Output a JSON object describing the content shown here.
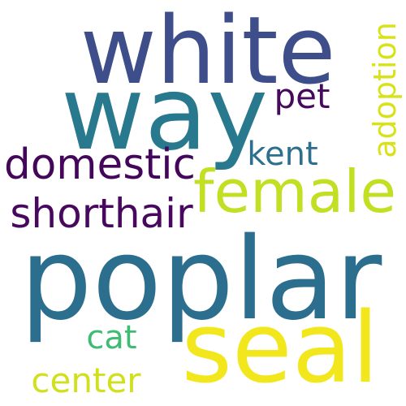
{
  "words": [
    {
      "id": "white",
      "text": "white",
      "color": "#3e4e8a",
      "vertical": false
    },
    {
      "id": "way",
      "text": "way",
      "color": "#28788e",
      "vertical": false
    },
    {
      "id": "poplar",
      "text": "poplar",
      "color": "#2c6e8e",
      "vertical": false
    },
    {
      "id": "seal",
      "text": "seal",
      "color": "#f2e71d",
      "vertical": false
    },
    {
      "id": "female",
      "text": "female",
      "color": "#c2df23",
      "vertical": false
    },
    {
      "id": "domestic",
      "text": "domestic",
      "color": "#44065a",
      "vertical": false
    },
    {
      "id": "shorthair",
      "text": "shorthair",
      "color": "#47085e",
      "vertical": false
    },
    {
      "id": "pet",
      "text": "pet",
      "color": "#460a5d",
      "vertical": false
    },
    {
      "id": "kent",
      "text": "kent",
      "color": "#2d6f8e",
      "vertical": false
    },
    {
      "id": "adoption",
      "text": "adoption",
      "color": "#d8e219",
      "vertical": true
    },
    {
      "id": "cat",
      "text": "cat",
      "color": "#3fbc73",
      "vertical": false
    },
    {
      "id": "center",
      "text": "center",
      "color": "#d0e11c",
      "vertical": false
    }
  ]
}
